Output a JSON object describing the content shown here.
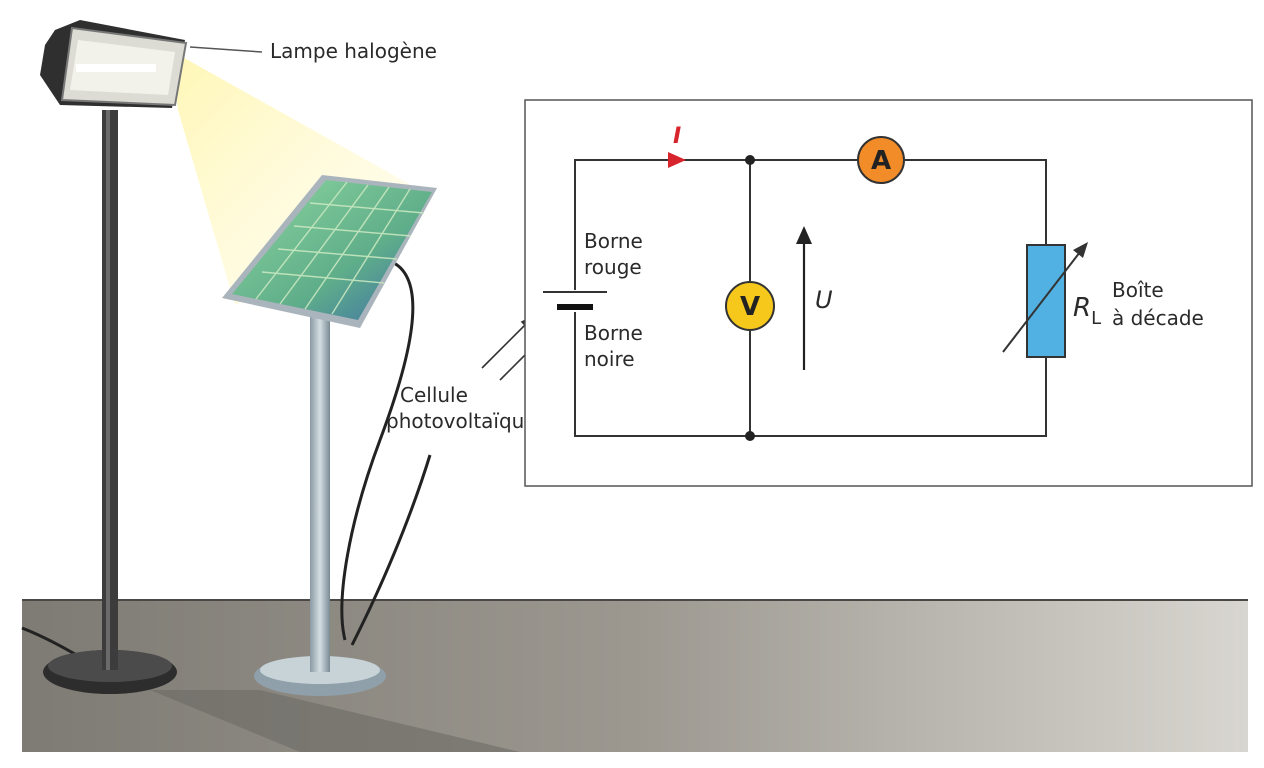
{
  "labels": {
    "lamp": "Lampe halogène",
    "cell_line1": "Cellule",
    "cell_line2": "photovoltaïque",
    "red_terminal_line1": "Borne",
    "red_terminal_line2": "rouge",
    "black_terminal_line1": "Borne",
    "black_terminal_line2": "noire",
    "current": "I",
    "voltage": "U",
    "voltmeter": "V",
    "ammeter": "A",
    "resistor_symbol": "R",
    "resistor_subscript": "L",
    "resistor_line1": "Boîte",
    "resistor_line2": "à décade"
  },
  "colors": {
    "meter_voltmeter": "#f6c81c",
    "meter_ammeter": "#f28c28",
    "resistor": "#52b1e3",
    "current_arrow": "#d8242c",
    "floor": "#8f8b83",
    "light_beam": "#fff2a0"
  }
}
